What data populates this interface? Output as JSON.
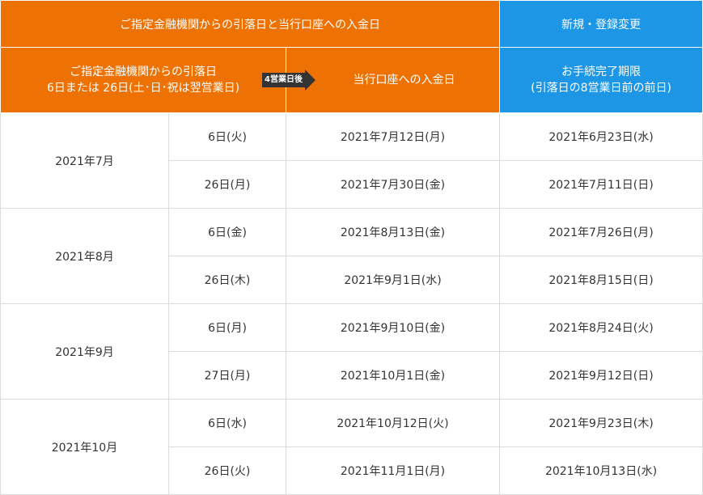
{
  "header": {
    "top_left": "ご指定金融機関からの引落日と当行口座への入金日",
    "top_right": "新規・登録変更",
    "withdraw_line1": "ご指定金融機関からの引落日",
    "withdraw_line2": "6日または 26日(土･日･祝は翌営業日)",
    "arrow_label": "4営業日後",
    "deposit": "当行口座への入金日",
    "deadline_line1": "お手続完了期限",
    "deadline_line2": "(引落日の8営業日前の前日)"
  },
  "rows": [
    {
      "month": "2021年7月",
      "items": [
        {
          "day": "6日(火)",
          "deposit": "2021年7月12日(月)",
          "deadline": "2021年6月23日(水)"
        },
        {
          "day": "26日(月)",
          "deposit": "2021年7月30日(金)",
          "deadline": "2021年7月11日(日)"
        }
      ]
    },
    {
      "month": "2021年8月",
      "items": [
        {
          "day": "6日(金)",
          "deposit": "2021年8月13日(金)",
          "deadline": "2021年7月26日(月)"
        },
        {
          "day": "26日(木)",
          "deposit": "2021年9月1日(水)",
          "deadline": "2021年8月15日(日)"
        }
      ]
    },
    {
      "month": "2021年9月",
      "items": [
        {
          "day": "6日(月)",
          "deposit": "2021年9月10日(金)",
          "deadline": "2021年8月24日(火)"
        },
        {
          "day": "27日(月)",
          "deposit": "2021年10月1日(金)",
          "deadline": "2021年9月12日(日)"
        }
      ]
    },
    {
      "month": "2021年10月",
      "items": [
        {
          "day": "6日(水)",
          "deposit": "2021年10月12日(火)",
          "deadline": "2021年9月23日(木)"
        },
        {
          "day": "26日(火)",
          "deposit": "2021年11月1日(月)",
          "deadline": "2021年10月13日(水)"
        }
      ]
    }
  ],
  "colors": {
    "orange": "#ee7203",
    "blue": "#1e96e6"
  }
}
